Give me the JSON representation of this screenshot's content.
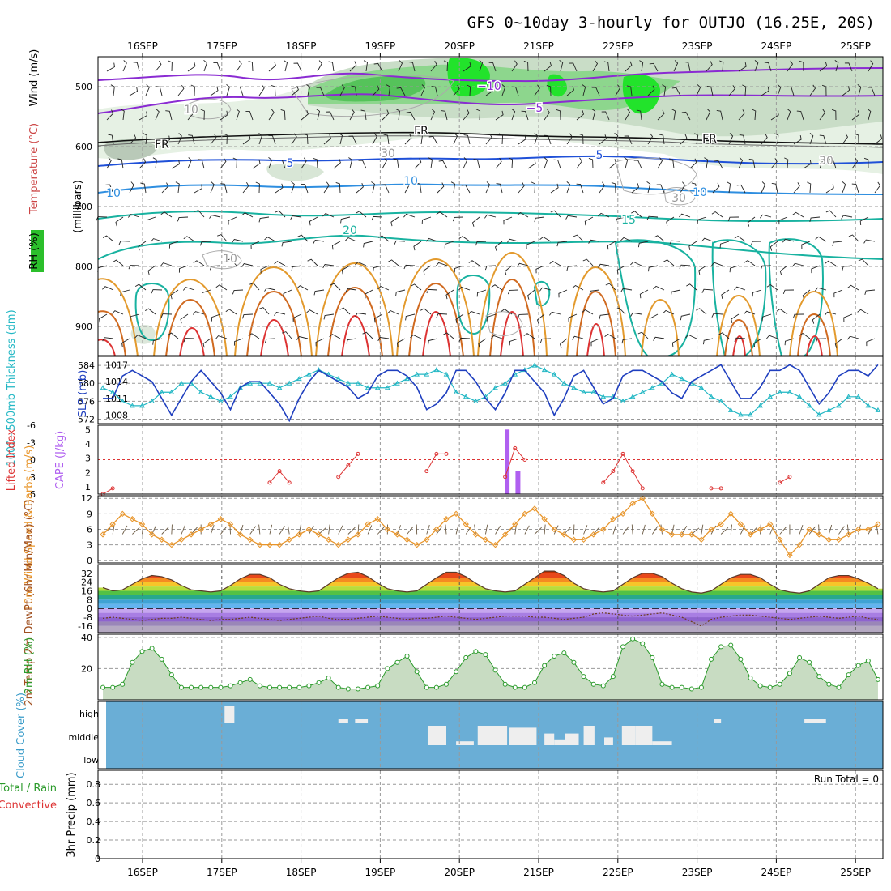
{
  "title": "GFS 0~10day 3-hourly for OUTJO (16.25E, 20S)",
  "colors": {
    "thickness": "#22b7c4",
    "slp": "#1f3fbf",
    "li": "#dd3333",
    "cape": "#b060f0",
    "wind": "#e8952a",
    "rh": "#2a9a2a",
    "cloud_bg": "#6aaed6",
    "cloud_bar": "#eeeeee",
    "green": "#2a9a2a",
    "red": "#dd3333",
    "purple": "#8a2bd2",
    "blue": "#1f50d8",
    "teal": "#18b2a0",
    "orange": "#e39a2d"
  },
  "days": [
    "16SEP",
    "17SEP",
    "18SEP",
    "19SEP",
    "20SEP",
    "21SEP",
    "22SEP",
    "23SEP",
    "24SEP",
    "25SEP"
  ],
  "chart_data": [
    {
      "type": "heatmap",
      "name": "upper-air cross-section",
      "ylabel": "(millibars)",
      "yticks": [
        "500",
        "600",
        "700",
        "800",
        "900"
      ],
      "legend": [
        "Wind (m/s)",
        "Temperature (°C)",
        "RH (%)"
      ],
      "contour_labels": [
        "−10",
        "−5",
        "FR",
        "FR",
        "FR",
        "5",
        "5",
        "10",
        "10",
        "10",
        "15",
        "20",
        "10",
        "10",
        "30",
        "30",
        "30"
      ]
    },
    {
      "type": "line",
      "name": "thickness-and-slp",
      "left_label": "1000−500mb Thickness (dm)",
      "right_label": "SLP (mb)",
      "left_ticks": [
        "584",
        "580",
        "576",
        "572"
      ],
      "right_ticks": [
        "1017",
        "1014",
        "1011",
        "1008"
      ],
      "left_range": [
        571,
        586
      ],
      "right_range": [
        1006.5,
        1018.5
      ],
      "series": [
        {
          "name": "Thickness (dm)",
          "values": [
            579,
            578,
            576,
            575,
            575,
            576,
            578,
            578,
            580,
            580,
            578,
            577,
            576,
            577,
            579,
            580,
            580,
            580,
            579,
            580,
            581,
            582,
            583,
            582,
            581,
            580,
            580,
            579,
            579,
            579,
            580,
            581,
            582,
            582,
            583,
            582,
            578,
            577,
            576,
            577,
            579,
            580,
            582,
            583,
            584,
            583,
            582,
            580,
            579,
            578,
            578,
            577,
            577,
            576,
            577,
            578,
            579,
            580,
            582,
            581,
            580,
            579,
            577,
            576,
            574,
            573,
            573,
            575,
            577,
            578,
            578,
            577,
            575,
            573,
            574,
            575,
            577,
            577,
            575,
            574
          ]
        },
        {
          "name": "SLP (mb)",
          "values": [
            1011,
            1011,
            1015,
            1016,
            1015,
            1014,
            1011,
            1008,
            1011,
            1014,
            1016,
            1014,
            1012,
            1009,
            1013,
            1014,
            1014,
            1012,
            1010,
            1007,
            1011,
            1014,
            1016,
            1015,
            1014,
            1013,
            1011,
            1012,
            1015,
            1016,
            1016,
            1015,
            1013,
            1009,
            1010,
            1012,
            1016,
            1016,
            1014,
            1011,
            1009,
            1012,
            1016,
            1016,
            1014,
            1012,
            1008,
            1011,
            1015,
            1016,
            1013,
            1010,
            1011,
            1015,
            1016,
            1016,
            1015,
            1014,
            1012,
            1011,
            1014,
            1015,
            1016,
            1017,
            1014,
            1011,
            1011,
            1013,
            1016,
            1016,
            1017,
            1016,
            1013,
            1010,
            1012,
            1015,
            1016,
            1016,
            1015,
            1017
          ]
        }
      ]
    },
    {
      "type": "bar",
      "name": "lifted-index-and-cape",
      "left_label": "Lifted Index",
      "right_label": "CAPE (J/kg)",
      "left_ticks": [
        "-6",
        "-3",
        "0",
        "3",
        "6"
      ],
      "right_ticks": [
        "5",
        "4",
        "3",
        "2",
        "1"
      ],
      "li_range": [
        -6,
        6
      ],
      "cape_range": [
        0.5,
        5.3
      ],
      "li": [
        6,
        5,
        null,
        null,
        null,
        null,
        null,
        null,
        null,
        null,
        null,
        null,
        null,
        null,
        null,
        null,
        null,
        4,
        2,
        4,
        null,
        null,
        null,
        null,
        3,
        1,
        -1,
        null,
        null,
        null,
        null,
        null,
        null,
        2,
        -1,
        -1,
        null,
        null,
        null,
        null,
        null,
        3,
        -2,
        0,
        null,
        null,
        null,
        null,
        null,
        null,
        null,
        4,
        2,
        -1,
        2,
        5,
        null,
        null,
        null,
        null,
        null,
        null,
        5,
        5,
        null,
        null,
        null,
        null,
        null,
        4,
        3,
        null,
        null,
        null,
        null,
        null,
        null,
        null,
        null,
        null
      ],
      "cape": [
        {
          "x": 41.7,
          "value": 5.0
        },
        {
          "x": 42.8,
          "value": 2.1
        }
      ]
    },
    {
      "type": "line",
      "name": "10m-wind",
      "ylabel": "10m Wind Speed & Barbs (m/s)",
      "yticks": [
        "12",
        "9",
        "6",
        "3",
        "0"
      ],
      "ylim": [
        -0.5,
        12.5
      ],
      "series": [
        {
          "name": "Wind speed (m/s)",
          "values": [
            5,
            7,
            9,
            8,
            7,
            5,
            4,
            3,
            4,
            5,
            6,
            7,
            8,
            7,
            5,
            4,
            3,
            3,
            3,
            4,
            5,
            6,
            5,
            4,
            3,
            4,
            5,
            7,
            8,
            6,
            5,
            4,
            3,
            4,
            6,
            8,
            9,
            7,
            5,
            4,
            3,
            5,
            7,
            9,
            10,
            8,
            6,
            5,
            4,
            4,
            5,
            6,
            8,
            9,
            11,
            12,
            9,
            6,
            5,
            5,
            5,
            4,
            6,
            7,
            9,
            7,
            5,
            6,
            7,
            4,
            1,
            3,
            6,
            5,
            4,
            4,
            5,
            6,
            6,
            7
          ]
        }
      ]
    },
    {
      "type": "area",
      "name": "2m-temperature",
      "ylabel": "2m Temp 2m DewPt (6hr Min/Max) (°C)",
      "yticks": [
        "32",
        "24",
        "16",
        "8",
        "0",
        "-8",
        "-16"
      ],
      "ylim": [
        -22,
        40
      ],
      "series": [
        {
          "name": "2m Temp (°C)",
          "values": [
            19,
            16,
            17,
            22,
            27,
            30,
            29,
            26,
            21,
            17,
            16,
            15,
            16,
            21,
            27,
            31,
            31,
            28,
            22,
            18,
            16,
            15,
            16,
            22,
            28,
            32,
            33,
            29,
            23,
            18,
            16,
            15,
            16,
            22,
            28,
            33,
            33,
            29,
            23,
            18,
            16,
            15,
            16,
            22,
            28,
            34,
            34,
            30,
            23,
            18,
            16,
            15,
            16,
            22,
            28,
            32,
            32,
            29,
            23,
            18,
            15,
            14,
            16,
            22,
            28,
            31,
            31,
            28,
            22,
            17,
            15,
            14,
            16,
            22,
            28,
            30,
            30,
            27,
            23,
            18
          ]
        },
        {
          "name": "2m DewPt (°C)",
          "values": [
            -9,
            -8,
            -9,
            -10,
            -11,
            -10,
            -9,
            -9,
            -8,
            -9,
            -10,
            -11,
            -10,
            -10,
            -9,
            -8,
            -9,
            -10,
            -11,
            -10,
            -9,
            -8,
            -7,
            -9,
            -10,
            -10,
            -9,
            -8,
            -7,
            -8,
            -9,
            -10,
            -9,
            -9,
            -8,
            -7,
            -8,
            -9,
            -10,
            -9,
            -8,
            -7,
            -7,
            -7,
            -8,
            -8,
            -9,
            -10,
            -9,
            -8,
            -5,
            -4,
            -5,
            -6,
            -7,
            -6,
            -5,
            -4,
            -6,
            -8,
            -12,
            -16,
            -10,
            -8,
            -7,
            -6,
            -6,
            -7,
            -8,
            -9,
            -10,
            -9,
            -8,
            -7,
            -8,
            -9,
            -8,
            -7,
            -9,
            -10
          ]
        }
      ]
    },
    {
      "type": "area",
      "name": "2m-rh",
      "ylabel": "2m RH (%)",
      "yticks": [
        "40",
        "20"
      ],
      "ylim": [
        0,
        42
      ],
      "values": [
        8,
        8,
        10,
        24,
        31,
        33,
        26,
        16,
        8,
        8,
        8,
        8,
        8,
        9,
        11,
        13,
        9,
        8,
        8,
        8,
        8,
        9,
        11,
        14,
        8,
        7,
        7,
        8,
        9,
        20,
        24,
        28,
        18,
        8,
        8,
        10,
        18,
        27,
        31,
        29,
        19,
        10,
        8,
        8,
        11,
        22,
        28,
        30,
        24,
        15,
        10,
        9,
        15,
        34,
        39,
        36,
        27,
        10,
        8,
        8,
        7,
        8,
        26,
        34,
        35,
        26,
        14,
        9,
        8,
        10,
        17,
        27,
        24,
        15,
        10,
        8,
        16,
        22,
        25,
        13
      ]
    },
    {
      "type": "bar",
      "name": "cloud-cover",
      "ylabel": "Cloud Cover (%)",
      "ytick_labels": [
        "high",
        "middle",
        "low"
      ],
      "high": [
        {
          "from": 12.9,
          "to": 13.9,
          "value": 100
        },
        {
          "from": 24.5,
          "to": 25.5,
          "value": 20
        },
        {
          "from": 26.2,
          "to": 27.5,
          "value": 20
        },
        {
          "from": 62.8,
          "to": 63.5,
          "value": 20
        },
        {
          "from": 72,
          "to": 74.2,
          "value": 20
        }
      ],
      "middle": [
        {
          "from": 33.6,
          "to": 35.5,
          "value": 100
        },
        {
          "from": 36.5,
          "to": 38.3,
          "value": 20
        },
        {
          "from": 38.7,
          "to": 41.7,
          "value": 100
        },
        {
          "from": 41.9,
          "to": 44.7,
          "value": 90
        },
        {
          "from": 45.5,
          "to": 46.5,
          "value": 60
        },
        {
          "from": 46.5,
          "to": 47.6,
          "value": 30
        },
        {
          "from": 47.6,
          "to": 49,
          "value": 60
        },
        {
          "from": 49.5,
          "to": 50.6,
          "value": 100
        },
        {
          "from": 51.6,
          "to": 52.5,
          "value": 40
        },
        {
          "from": 53.4,
          "to": 54.8,
          "value": 100
        },
        {
          "from": 54.8,
          "to": 56.5,
          "value": 100
        },
        {
          "from": 56.5,
          "to": 58.5,
          "value": 20
        }
      ]
    },
    {
      "type": "bar",
      "name": "precipitation",
      "ylabel": "3hr Precip (mm)",
      "left_labels": [
        "Total / Rain",
        "Convective"
      ],
      "yticks": [
        "0.8",
        "0.6",
        "0.4",
        "0.2",
        "0"
      ],
      "ylim": [
        0,
        0.95
      ],
      "run_total": "Run Total = 0",
      "values": []
    }
  ]
}
